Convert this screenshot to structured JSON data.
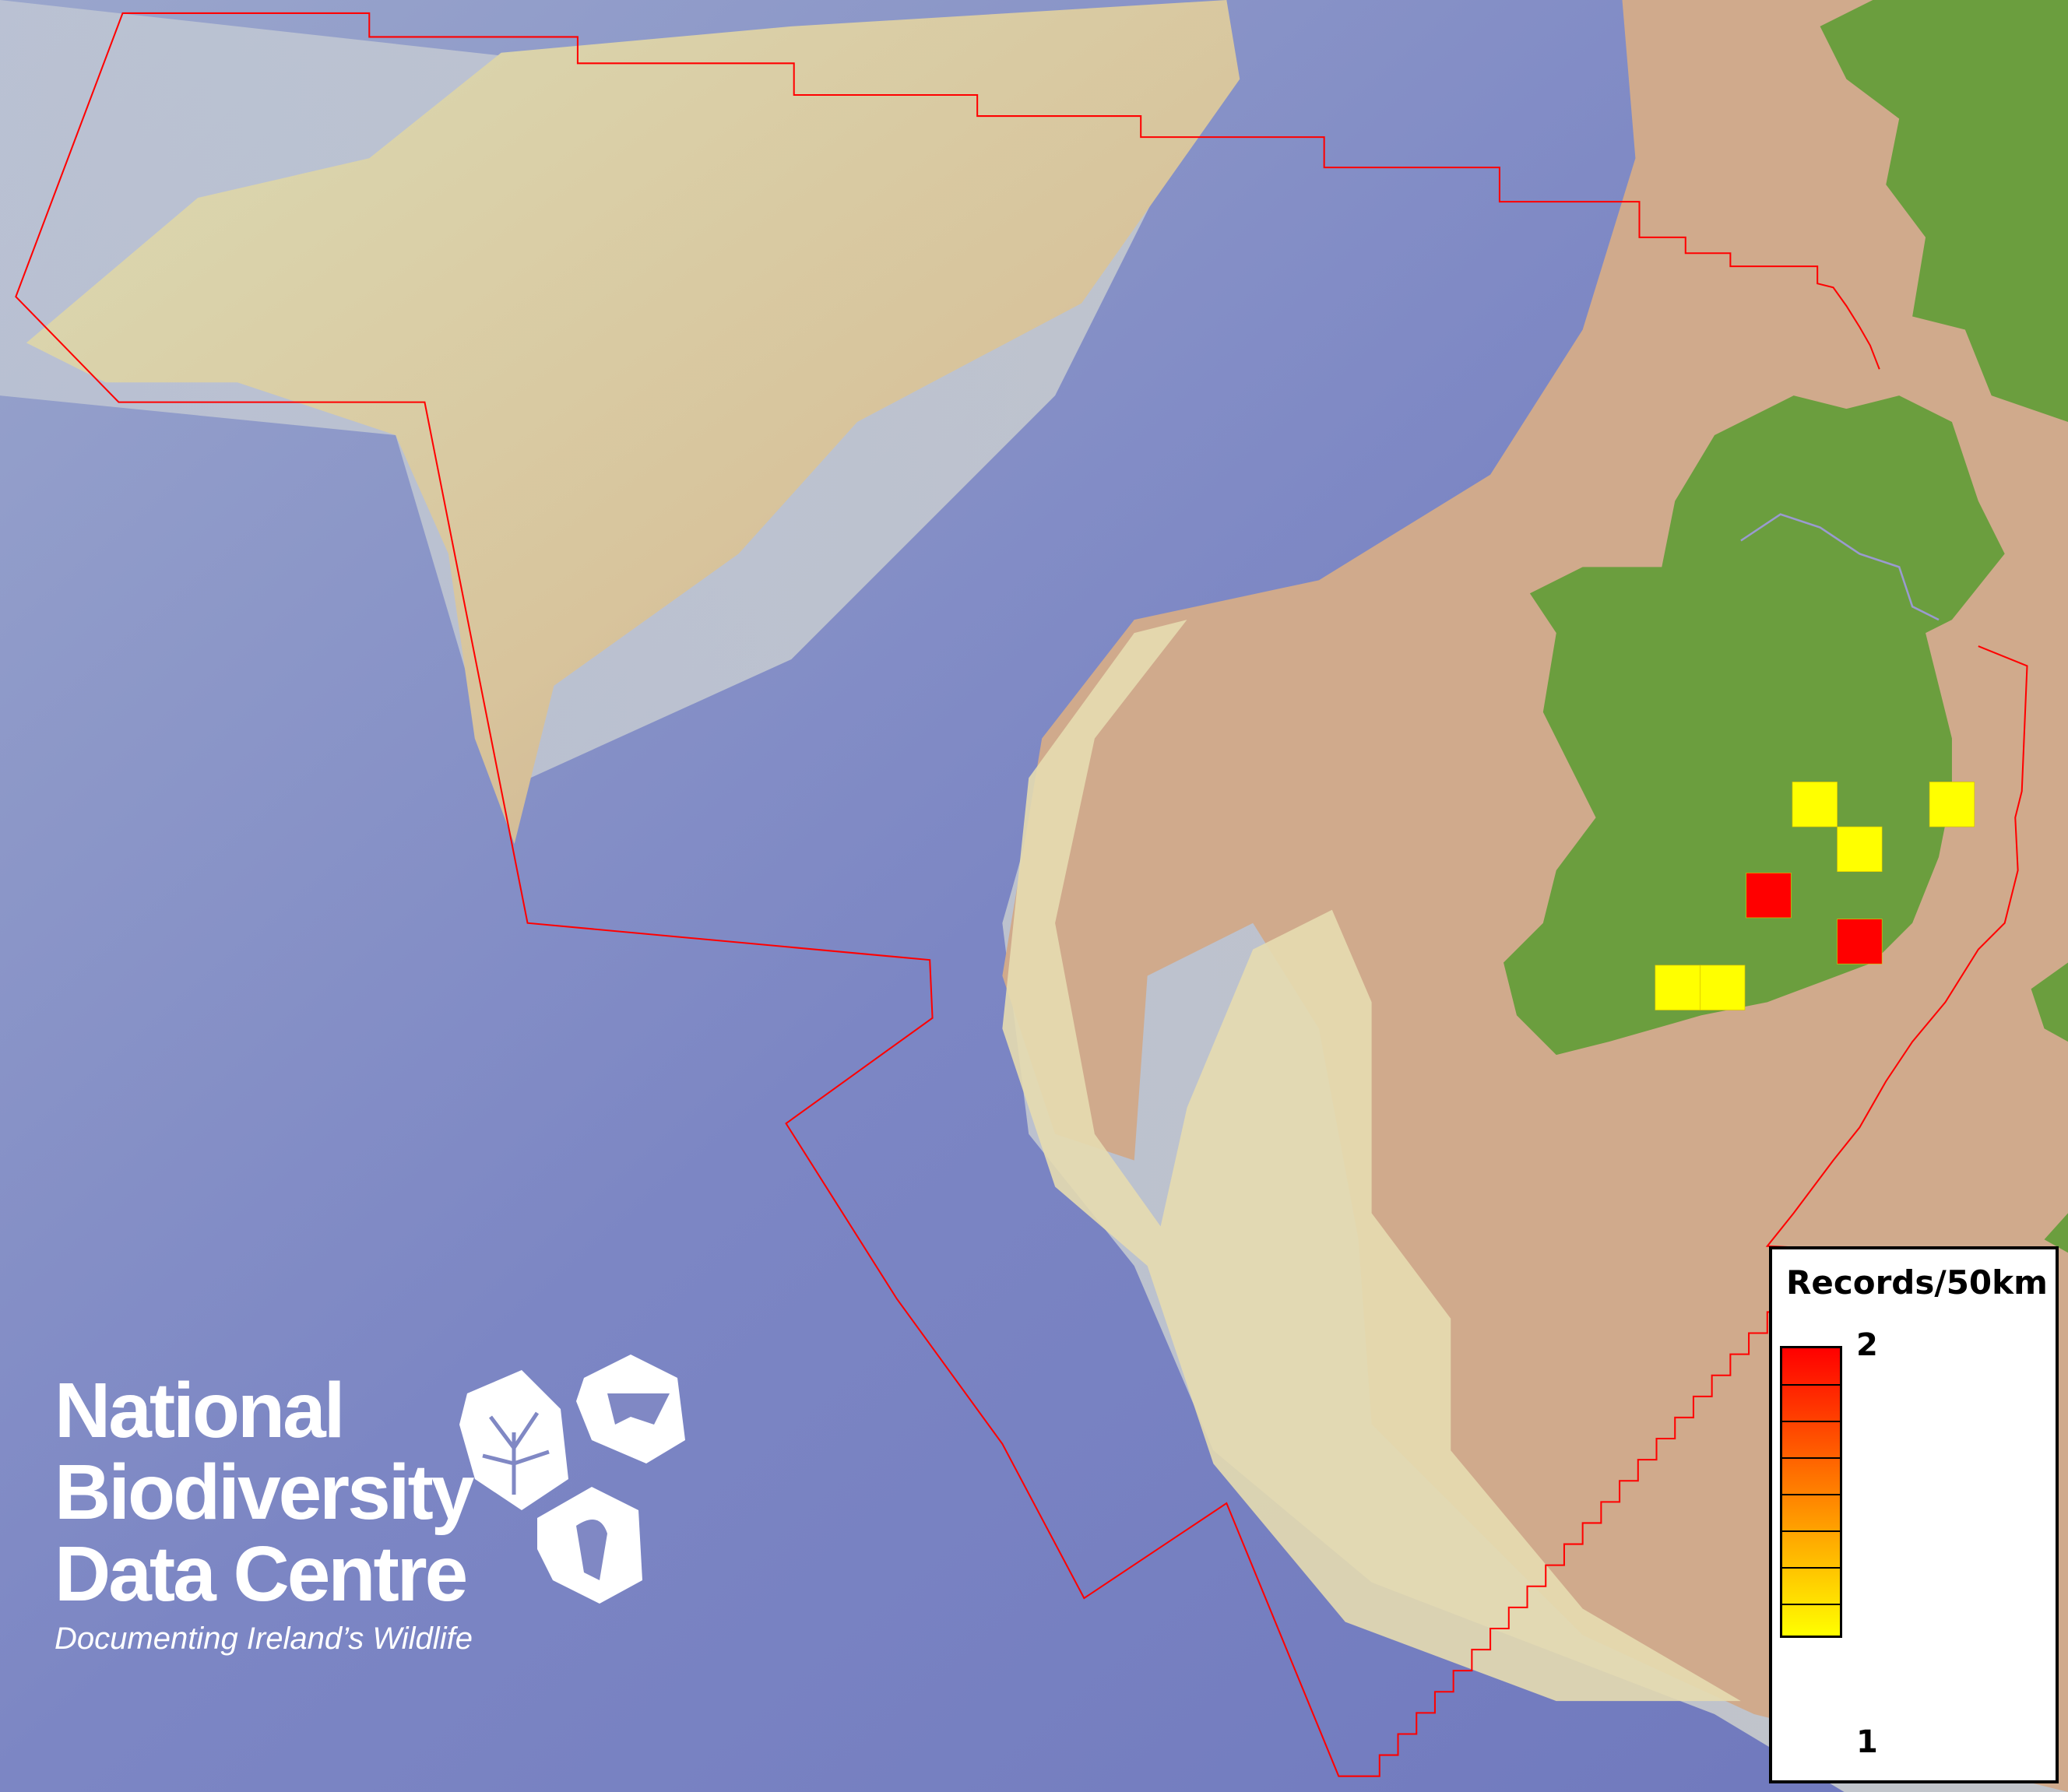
{
  "map": {
    "colors": {
      "ocean": "#8088c4",
      "shelf": "#e4ddb0",
      "land_bg": "#cfaa8a",
      "land": "#6b9e3e",
      "boundary": "#ff0000"
    },
    "grid_cells": [
      1,
      1,
      1,
      1,
      1,
      2,
      2
    ]
  },
  "legend": {
    "title": "Records/50km",
    "max_label": "2",
    "min_label": "1",
    "color_max": "#ff0000",
    "color_min": "#ffff00"
  },
  "logo": {
    "line1": "National",
    "line2": "Biodiversity",
    "line3": "Data Centre",
    "tagline": "Documenting Ireland’s Wildlife",
    "icons": [
      "tree-icon",
      "butterfly-icon",
      "seahorse-icon"
    ]
  }
}
